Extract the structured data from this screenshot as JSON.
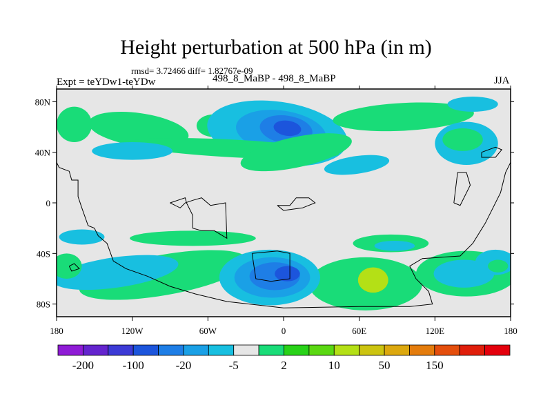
{
  "chart_data": {
    "type": "heatmap",
    "title": "Height perturbation at 500 hPa (in m)",
    "stats_line": "rmsd= 3.72466 diff= 1.82767e-09",
    "left_label": "Expt = teYDw1-teYDw",
    "center_label": "498_8_MaBP - 498_8_MaBP",
    "right_label": "JJA",
    "x_ticks": [
      "180",
      "120W",
      "60W",
      "0",
      "60E",
      "120E",
      "180"
    ],
    "x_tick_values": [
      -180,
      -120,
      -60,
      0,
      60,
      120,
      180
    ],
    "y_ticks": [
      "80N",
      "40N",
      "0",
      "40S",
      "80S"
    ],
    "y_tick_values": [
      80,
      40,
      0,
      -40,
      -80
    ],
    "xlim": [
      -180,
      180
    ],
    "ylim": [
      -90,
      90
    ],
    "colorbar": {
      "labels": [
        "-200",
        "-100",
        "-20",
        "-5",
        "2",
        "10",
        "50",
        "150"
      ],
      "colors": [
        "#8f1bd6",
        "#6424ce",
        "#3c3ad6",
        "#1c55dc",
        "#1e7ee6",
        "#1aa0e6",
        "#18bfe0",
        "#e6e6e6",
        "#19dc78",
        "#28d218",
        "#5ad812",
        "#b4e016",
        "#ccc410",
        "#dca80e",
        "#e47c0c",
        "#e44e0c",
        "#e01e0a",
        "#e4000c"
      ]
    },
    "field_colors": {
      "background": "#e6e6e6",
      "weak_positive": "#19dc78",
      "positive": "#28d218",
      "strong_positive": "#b4e016",
      "weak_negative": "#18bfe0",
      "negative": "#1aa0e6",
      "strong_negative": "#1e7ee6",
      "very_strong_negative": "#1c55dc"
    }
  }
}
